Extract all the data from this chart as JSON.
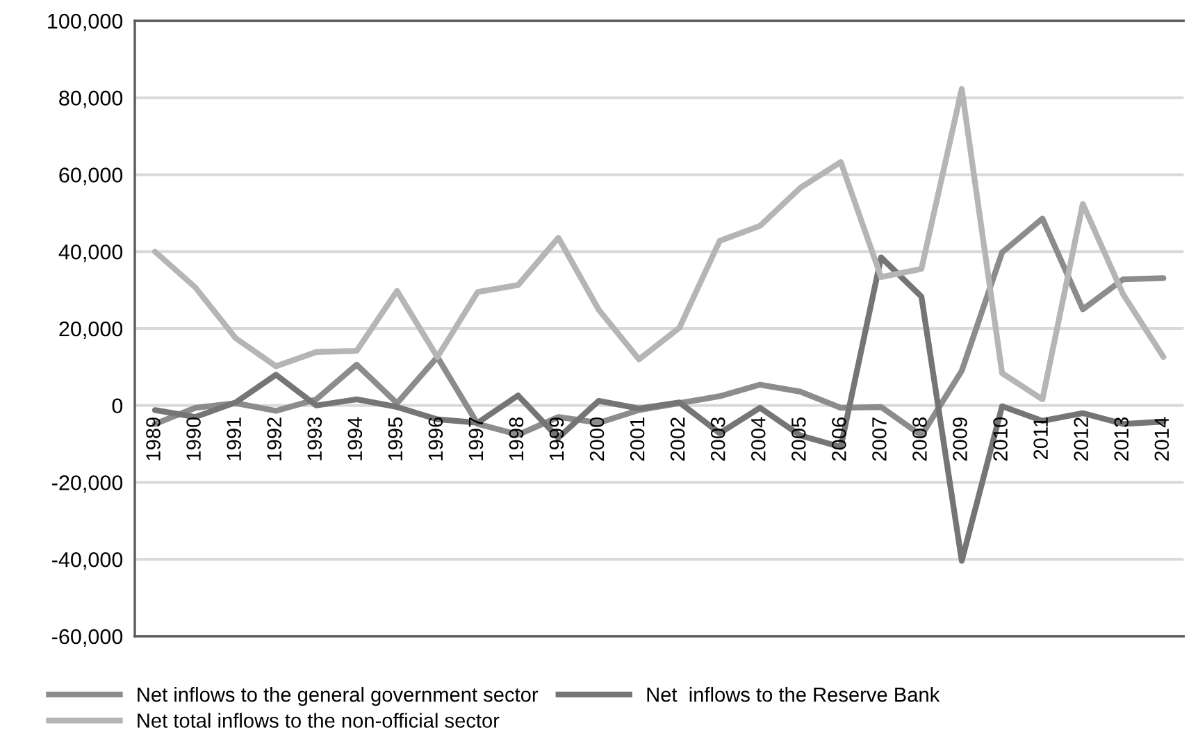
{
  "chart_data": {
    "type": "line",
    "categories": [
      "1989",
      "1990",
      "1991",
      "1992",
      "1993",
      "1994",
      "1995",
      "1996",
      "1997",
      "1998",
      "1999",
      "2000",
      "2001",
      "2002",
      "2003",
      "2004",
      "2005",
      "2006",
      "2007",
      "2008",
      "2009",
      "2010",
      "2011",
      "2012",
      "2013",
      "2014"
    ],
    "series": [
      {
        "name": "Net inflows to the general government sector",
        "color": "#8c8c8d",
        "values": [
          -4800,
          -600,
          600,
          -1400,
          1600,
          10600,
          600,
          12600,
          -4800,
          -7600,
          -3000,
          -4500,
          -1200,
          600,
          2400,
          5400,
          3600,
          -600,
          -400,
          -7800,
          9000,
          39800,
          48600,
          25000,
          32800,
          33100
        ]
      },
      {
        "name": "Net  inflows to the Reserve Bank",
        "color": "#747577",
        "values": [
          -1200,
          -3000,
          800,
          8000,
          0,
          1600,
          -400,
          -3600,
          -4500,
          2600,
          -8400,
          1200,
          -800,
          800,
          -7200,
          -600,
          -7800,
          -10800,
          38500,
          28300,
          -40400,
          -200,
          -4000,
          -2000,
          -4800,
          -4200
        ]
      },
      {
        "name": "Net total inflows to the non-official sector",
        "color": "#b4b5b7",
        "values": [
          40000,
          30700,
          17500,
          10200,
          13900,
          14200,
          29800,
          12600,
          29500,
          31300,
          43600,
          24900,
          12000,
          20200,
          42800,
          46700,
          56600,
          63300,
          33400,
          35500,
          82300,
          8400,
          1600,
          52400,
          28900,
          12600
        ]
      }
    ],
    "ylim": [
      -60000,
      100000
    ],
    "yticks": [
      {
        "value": -60000,
        "label": "-60,000"
      },
      {
        "value": -40000,
        "label": "-40,000"
      },
      {
        "value": -20000,
        "label": "-20,000"
      },
      {
        "value": 0,
        "label": "0"
      },
      {
        "value": 20000,
        "label": "20,000"
      },
      {
        "value": 40000,
        "label": "40,000"
      },
      {
        "value": 60000,
        "label": "60,000"
      },
      {
        "value": 80000,
        "label": "80,000"
      },
      {
        "value": 100000,
        "label": "100,000"
      }
    ],
    "grid": "y",
    "legend": "bottom",
    "marker": "none",
    "line_style": "solid"
  }
}
